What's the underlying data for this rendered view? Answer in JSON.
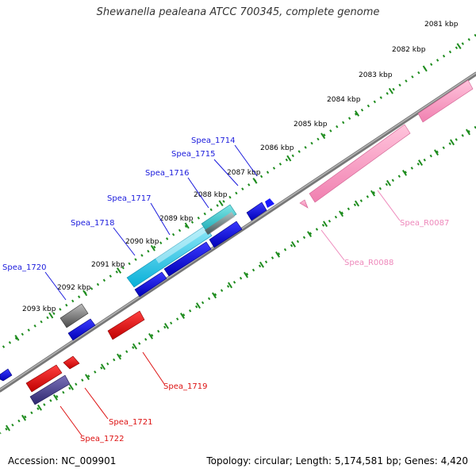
{
  "title": "Shewanella pealeana ATCC 700345, complete genome",
  "footer": {
    "accession": "Accession: NC_009901",
    "summary": "Topology: circular; Length: 5,174,581 bp; Genes: 4,420"
  },
  "colors": {
    "backbone": "#888888",
    "ruler": "#1e8c1e",
    "forward_cds": "#0000ee",
    "reverse_cds": "#ee0000",
    "rna": "#ff88bb",
    "label_forward": "#1a1adc",
    "label_reverse": "#dd1111",
    "label_rna": "#ee88bb"
  },
  "scale_labels": [
    "2081 kbp",
    "2082 kbp",
    "2083 kbp",
    "2084 kbp",
    "2085 kbp",
    "2086 kbp",
    "2087 kbp",
    "2088 kbp",
    "2089 kbp",
    "2090 kbp",
    "2091 kbp",
    "2092 kbp",
    "2093 kbp"
  ],
  "gene_labels": {
    "spea_1714": "Spea_1714",
    "spea_1715": "Spea_1715",
    "spea_1716": "Spea_1716",
    "spea_1717": "Spea_1717",
    "spea_1718": "Spea_1718",
    "spea_1720": "Spea_1720",
    "spea_1719": "Spea_1719",
    "spea_1721": "Spea_1721",
    "spea_1722": "Spea_1722",
    "spea_r0087": "Spea_R0087",
    "spea_r0088": "Spea_R0088"
  }
}
